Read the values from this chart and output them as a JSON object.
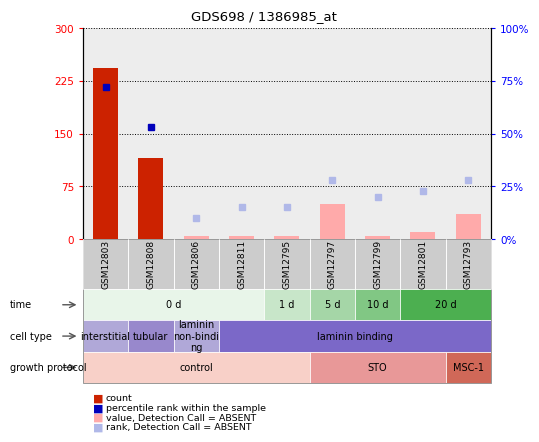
{
  "title": "GDS698 / 1386985_at",
  "samples": [
    "GSM12803",
    "GSM12808",
    "GSM12806",
    "GSM12811",
    "GSM12795",
    "GSM12797",
    "GSM12799",
    "GSM12801",
    "GSM12793"
  ],
  "red_bars": [
    243,
    116,
    0,
    0,
    0,
    0,
    0,
    0,
    0
  ],
  "blue_squares_pct": [
    72,
    53,
    0,
    0,
    0,
    0,
    0,
    0,
    0
  ],
  "pink_bars": [
    0,
    0,
    5,
    5,
    5,
    50,
    5,
    10,
    35
  ],
  "lavender_squares_pct": [
    0,
    0,
    10,
    15,
    15,
    28,
    20,
    23,
    28
  ],
  "ylim_left": [
    0,
    300
  ],
  "ylim_right": [
    0,
    100
  ],
  "yticks_left": [
    0,
    75,
    150,
    225,
    300
  ],
  "yticks_right": [
    0,
    25,
    50,
    75,
    100
  ],
  "ytick_labels_left": [
    "0",
    "75",
    "150",
    "225",
    "300"
  ],
  "ytick_labels_right": [
    "0%",
    "25%",
    "50%",
    "75%",
    "100%"
  ],
  "time_groups": [
    {
      "label": "0 d",
      "start": 0,
      "end": 4,
      "color": "#e8f5e9"
    },
    {
      "label": "1 d",
      "start": 4,
      "end": 5,
      "color": "#c8e6c9"
    },
    {
      "label": "5 d",
      "start": 5,
      "end": 6,
      "color": "#a5d6a7"
    },
    {
      "label": "10 d",
      "start": 6,
      "end": 7,
      "color": "#81c784"
    },
    {
      "label": "20 d",
      "start": 7,
      "end": 9,
      "color": "#4caf50"
    }
  ],
  "cell_type_groups": [
    {
      "label": "interstitial",
      "start": 0,
      "end": 1,
      "color": "#b0a8d8"
    },
    {
      "label": "tubular",
      "start": 1,
      "end": 2,
      "color": "#9888cc"
    },
    {
      "label": "laminin\nnon-bindi\nng",
      "start": 2,
      "end": 3,
      "color": "#b0a8d8"
    },
    {
      "label": "laminin binding",
      "start": 3,
      "end": 9,
      "color": "#7b68c8"
    }
  ],
  "growth_protocol_groups": [
    {
      "label": "control",
      "start": 0,
      "end": 5,
      "color": "#f8d0c8"
    },
    {
      "label": "STO",
      "start": 5,
      "end": 8,
      "color": "#e89898"
    },
    {
      "label": "MSC-1",
      "start": 8,
      "end": 9,
      "color": "#d06858"
    }
  ],
  "legend_items": [
    {
      "color": "#cc2200",
      "marker": "s",
      "label": "count"
    },
    {
      "color": "#0000bb",
      "marker": "s",
      "label": "percentile rank within the sample"
    },
    {
      "color": "#ffaaaa",
      "marker": "s",
      "label": "value, Detection Call = ABSENT"
    },
    {
      "color": "#b0b8e8",
      "marker": "s",
      "label": "rank, Detection Call = ABSENT"
    }
  ],
  "bar_color_red": "#cc2200",
  "bar_color_pink": "#ffaaaa",
  "square_color_blue": "#0000bb",
  "square_color_lavender": "#b0b8e8",
  "sample_bg": "#cccccc",
  "bg_color": "#ffffff",
  "row_label_color": "#333333",
  "grid_color": "#000000"
}
